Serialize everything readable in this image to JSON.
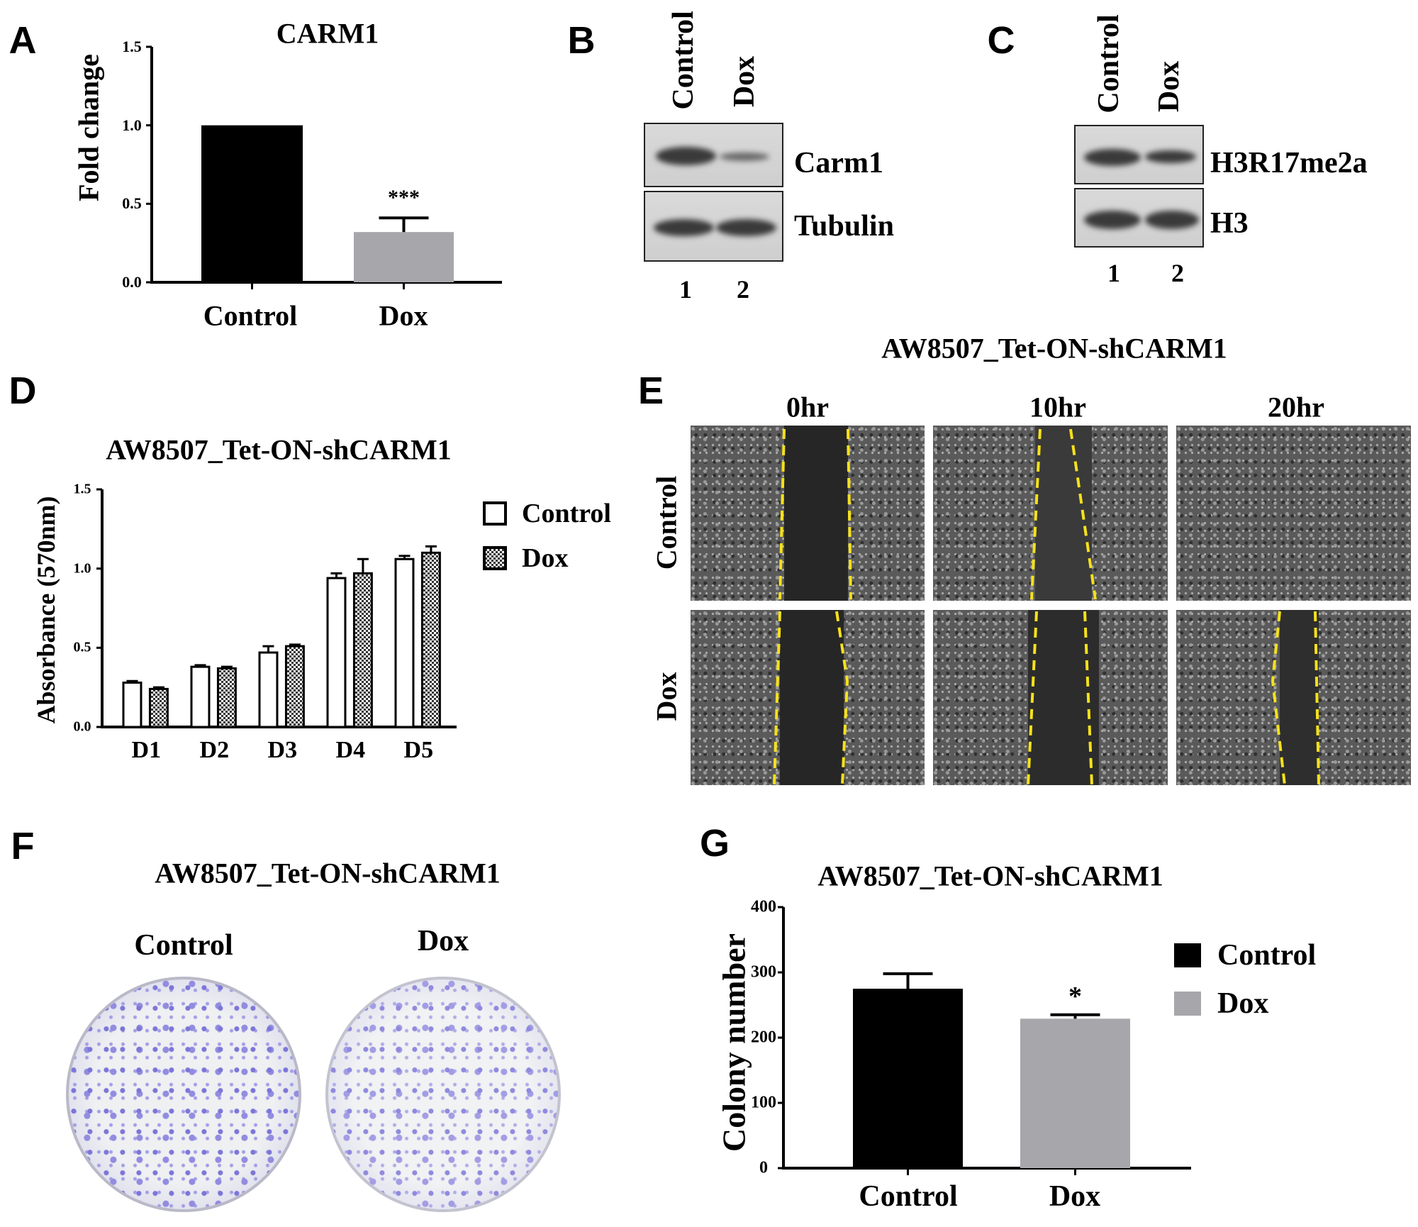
{
  "panel_labels": {
    "a": "A",
    "b": "B",
    "c": "C",
    "d": "D",
    "e": "E",
    "f": "F",
    "g": "G"
  },
  "chart_data": [
    {
      "id": "A",
      "type": "bar",
      "title": "CARM1",
      "ylabel": "Fold change",
      "xlabel": "",
      "categories": [
        "Control",
        "Dox"
      ],
      "values": [
        1.0,
        0.32
      ],
      "errors": [
        0,
        0.09
      ],
      "colors": [
        "#000000",
        "#a7a7ab"
      ],
      "ylim": [
        0,
        1.5
      ],
      "yticks": [
        "0.0",
        "0.5",
        "1.0",
        "1.5"
      ],
      "annotations": [
        "",
        "***"
      ],
      "grid": false
    },
    {
      "id": "D",
      "type": "bar",
      "title": "AW8507_Tet-ON-shCARM1",
      "ylabel": "Absorbance (570nm)",
      "xlabel": "",
      "categories": [
        "D1",
        "D2",
        "D3",
        "D4",
        "D5"
      ],
      "series": [
        {
          "name": "Control",
          "values": [
            0.28,
            0.38,
            0.47,
            0.94,
            1.06
          ],
          "errors": [
            0.01,
            0.01,
            0.04,
            0.03,
            0.02
          ],
          "fill": "white"
        },
        {
          "name": "Dox",
          "values": [
            0.24,
            0.37,
            0.51,
            0.97,
            1.1
          ],
          "errors": [
            0.01,
            0.01,
            0.01,
            0.09,
            0.04
          ],
          "fill": "checkered"
        }
      ],
      "ylim": [
        0,
        1.5
      ],
      "yticks": [
        "0.0",
        "0.5",
        "1.0",
        "1.5"
      ],
      "legend": "right",
      "grid": false
    },
    {
      "id": "G",
      "type": "bar",
      "title": "AW8507_Tet-ON-shCARM1",
      "ylabel": "Colony number",
      "xlabel": "",
      "categories": [
        "Control",
        "Dox"
      ],
      "values": [
        275,
        229
      ],
      "errors": [
        23,
        6
      ],
      "colors": [
        "#000000",
        "#a7a7ab"
      ],
      "ylim": [
        0,
        400
      ],
      "yticks": [
        "0",
        "100",
        "200",
        "300",
        "400"
      ],
      "annotations": [
        "",
        "*"
      ],
      "legend": "right",
      "legend_entries": [
        "Control",
        "Dox"
      ],
      "grid": false
    }
  ],
  "blot_b": {
    "lanes": [
      "Control",
      "Dox"
    ],
    "rows": [
      "Carm1",
      "Tubulin"
    ],
    "lane_numbers": [
      "1",
      "2"
    ]
  },
  "blot_c": {
    "lanes": [
      "Control",
      "Dox"
    ],
    "rows": [
      "H3R17me2a",
      "H3"
    ],
    "lane_numbers": [
      "1",
      "2"
    ]
  },
  "panel_e": {
    "title": "AW8507_Tet-ON-shCARM1",
    "columns": [
      "0hr",
      "10hr",
      "20hr"
    ],
    "rows": [
      "Control",
      "Dox"
    ],
    "line_color": "#f5e11b"
  },
  "panel_f": {
    "title": "AW8507_Tet-ON-shCARM1",
    "plates": [
      "Control",
      "Dox"
    ]
  }
}
